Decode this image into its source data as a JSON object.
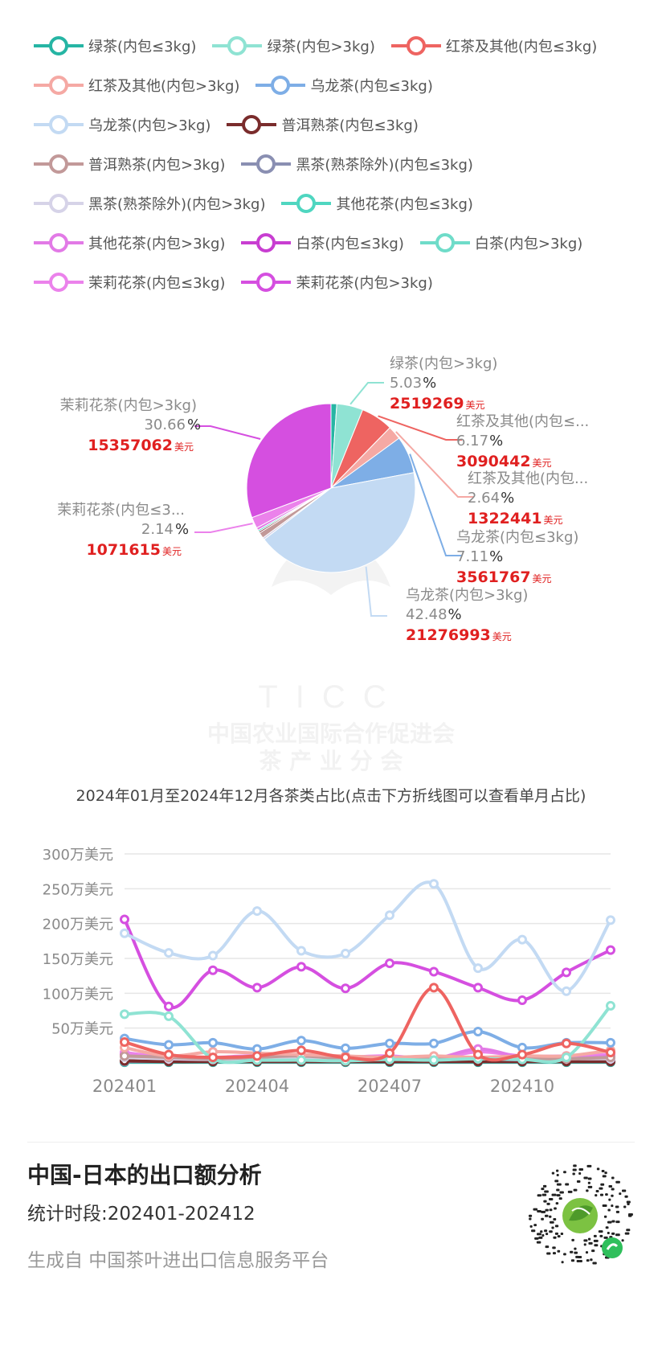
{
  "legend": [
    {
      "label": "绿茶(内包≤3kg)",
      "color": "#26b5a4"
    },
    {
      "label": "绿茶(内包>3kg)",
      "color": "#8fe3d3"
    },
    {
      "label": "红茶及其他(内包≤3kg)",
      "color": "#ee6461"
    },
    {
      "label": "红茶及其他(内包>3kg)",
      "color": "#f5a9a4"
    },
    {
      "label": "乌龙茶(内包≤3kg)",
      "color": "#7eaee6"
    },
    {
      "label": "乌龙茶(内包>3kg)",
      "color": "#c3daf3"
    },
    {
      "label": "普洱熟茶(内包≤3kg)",
      "color": "#7a2c2c"
    },
    {
      "label": "普洱熟茶(内包>3kg)",
      "color": "#c29999"
    },
    {
      "label": "黑茶(熟茶除外)(内包≤3kg)",
      "color": "#8a8fb2"
    },
    {
      "label": "黑茶(熟茶除外)(内包>3kg)",
      "color": "#d6d3e8"
    },
    {
      "label": "其他花茶(内包≤3kg)",
      "color": "#4fd6c0"
    },
    {
      "label": "其他花茶(内包>3kg)",
      "color": "#e27ae6"
    },
    {
      "label": "白茶(内包≤3kg)",
      "color": "#c83ed1"
    },
    {
      "label": "白茶(内包>3kg)",
      "color": "#6fdcc9"
    },
    {
      "label": "茉莉花茶(内包≤3kg)",
      "color": "#eb82eb"
    },
    {
      "label": "茉莉花茶(内包>3kg)",
      "color": "#d54fe0"
    }
  ],
  "legend_rows": [
    [
      0,
      1,
      2
    ],
    [
      3,
      4
    ],
    [
      5,
      6
    ],
    [
      7,
      8
    ],
    [
      9,
      10
    ],
    [
      11,
      12,
      13
    ],
    [
      14,
      15
    ]
  ],
  "chart_data": [
    {
      "type": "pie",
      "title": "",
      "unit": "美元",
      "slices": [
        {
          "name": "绿茶(内包≤3kg)",
          "percent": 1.1,
          "color": "#26b5a4"
        },
        {
          "name": "绿茶(内包>3kg)",
          "percent": 5.03,
          "value": 2519269,
          "color": "#8fe3d3"
        },
        {
          "name": "红茶及其他(内包≤3kg)",
          "percent": 6.17,
          "value": 3090442,
          "color": "#ee6461"
        },
        {
          "name": "红茶及其他(内包>3kg)",
          "percent": 2.64,
          "value": 1322441,
          "color": "#f5a9a4"
        },
        {
          "name": "乌龙茶(内包≤3kg)",
          "percent": 7.11,
          "value": 3561767,
          "color": "#7eaee6"
        },
        {
          "name": "乌龙茶(内包>3kg)",
          "percent": 42.48,
          "value": 21276993,
          "color": "#c3daf3"
        },
        {
          "name": "黑茶(熟茶除外)(内包>3kg)",
          "percent": 0.4,
          "color": "#d6d3e8"
        },
        {
          "name": "普洱熟茶(内包>3kg)",
          "percent": 1.1,
          "color": "#c29999"
        },
        {
          "name": "普洱熟茶(内包≤3kg)",
          "percent": 0.3,
          "color": "#7a2c2c"
        },
        {
          "name": "其他花茶(内包≤3kg)",
          "percent": 0.3,
          "color": "#4fd6c0"
        },
        {
          "name": "其他花茶(内包>3kg)",
          "percent": 0.5,
          "color": "#e27ae6"
        },
        {
          "name": "茉莉花茶(内包≤3kg)",
          "percent": 2.14,
          "value": 1071615,
          "color": "#eb82eb"
        },
        {
          "name": "茉莉花茶(内包>3kg)",
          "percent": 30.66,
          "value": 15357062,
          "color": "#d54fe0"
        }
      ],
      "labels": [
        {
          "slice": 1,
          "name": "绿茶(内包>3kg)",
          "pct": "5.03",
          "amount": "2519269"
        },
        {
          "slice": 2,
          "name": "红茶及其他(内包≤...",
          "pct": "6.17",
          "amount": "3090442"
        },
        {
          "slice": 3,
          "name": "红茶及其他(内包...",
          "pct": "2.64",
          "amount": "1322441"
        },
        {
          "slice": 4,
          "name": "乌龙茶(内包≤3kg)",
          "pct": "7.11",
          "amount": "3561767"
        },
        {
          "slice": 5,
          "name": "乌龙茶(内包>3kg)",
          "pct": "42.48",
          "amount": "21276993"
        },
        {
          "slice": 11,
          "name": "茉莉花茶(内包≤3...",
          "pct": "2.14",
          "amount": "1071615"
        },
        {
          "slice": 12,
          "name": "茉莉花茶(内包>3kg)",
          "pct": "30.66",
          "amount": "15357062"
        }
      ],
      "caption": "2024年01月至2024年12月各茶类占比(点击下方折线图可以查看单月占比)"
    },
    {
      "type": "line",
      "x": [
        "202401",
        "202402",
        "202403",
        "202404",
        "202405",
        "202406",
        "202407",
        "202408",
        "202409",
        "202410",
        "202411",
        "202412"
      ],
      "x_tick_labels": [
        "202401",
        "202404",
        "202407",
        "202410"
      ],
      "y_tick_labels": [
        "50万美元",
        "100万美元",
        "150万美元",
        "200万美元",
        "250万美元",
        "300万美元"
      ],
      "ylim": [
        0,
        300
      ],
      "y_unit": "万美元",
      "series": [
        {
          "name": "乌龙茶(内包>3kg)",
          "color": "#c3daf3",
          "values": [
            186,
            158,
            154,
            218,
            161,
            157,
            212,
            257,
            136,
            177,
            103,
            205
          ]
        },
        {
          "name": "茉莉花茶(内包>3kg)",
          "color": "#d54fe0",
          "values": [
            206,
            81,
            133,
            108,
            138,
            107,
            143,
            131,
            108,
            90,
            130,
            162
          ]
        },
        {
          "name": "红茶及其他(内包≤3kg)",
          "color": "#ee6461",
          "values": [
            30,
            12,
            8,
            10,
            18,
            8,
            14,
            108,
            12,
            12,
            28,
            15
          ]
        },
        {
          "name": "绿茶(内包>3kg)",
          "color": "#8fe3d3",
          "values": [
            70,
            67,
            6,
            4,
            4,
            3,
            5,
            4,
            6,
            5,
            8,
            82
          ]
        },
        {
          "name": "乌龙茶(内包≤3kg)",
          "color": "#7eaee6",
          "values": [
            35,
            26,
            29,
            20,
            32,
            21,
            28,
            28,
            45,
            22,
            29,
            29
          ]
        },
        {
          "name": "红茶及其他(内包>3kg)",
          "color": "#f5a9a4",
          "values": [
            22,
            10,
            16,
            14,
            12,
            10,
            8,
            10,
            8,
            10,
            10,
            18
          ]
        },
        {
          "name": "普洱熟茶(内包>3kg)",
          "color": "#c29999",
          "values": [
            10,
            8,
            6,
            8,
            10,
            6,
            6,
            8,
            6,
            6,
            6,
            8
          ]
        },
        {
          "name": "黑茶(熟茶除外)(内包>3kg)",
          "color": "#d6d3e8",
          "values": [
            8,
            6,
            5,
            6,
            8,
            6,
            6,
            6,
            6,
            6,
            6,
            6
          ]
        },
        {
          "name": "其他花茶(内包>3kg)",
          "color": "#e27ae6",
          "values": [
            10,
            8,
            6,
            8,
            6,
            6,
            8,
            6,
            20,
            8,
            6,
            10
          ]
        },
        {
          "name": "茉莉花茶(内包≤3kg)",
          "color": "#eb82eb",
          "values": [
            15,
            8,
            8,
            10,
            6,
            8,
            10,
            6,
            16,
            10,
            10,
            12
          ]
        },
        {
          "name": "白茶(内包≤3kg)",
          "color": "#c83ed1",
          "values": [
            12,
            6,
            6,
            5,
            6,
            5,
            6,
            5,
            6,
            5,
            10,
            6
          ]
        },
        {
          "name": "普洱熟茶(内包≤3kg)",
          "color": "#7a2c2c",
          "values": [
            3,
            2,
            2,
            2,
            2,
            2,
            2,
            2,
            2,
            2,
            2,
            2
          ]
        },
        {
          "name": "黑茶(熟茶除外)(内包≤3kg)",
          "color": "#8a8fb2",
          "values": [
            2,
            2,
            2,
            2,
            2,
            2,
            2,
            2,
            2,
            2,
            2,
            2
          ]
        },
        {
          "name": "其他花茶(内包≤3kg)",
          "color": "#4fd6c0",
          "values": [
            2,
            2,
            2,
            2,
            2,
            2,
            2,
            2,
            2,
            2,
            2,
            2
          ]
        },
        {
          "name": "白茶(内包>3kg)",
          "color": "#6fdcc9",
          "values": [
            2,
            2,
            2,
            2,
            2,
            2,
            2,
            2,
            2,
            2,
            2,
            2
          ]
        },
        {
          "name": "绿茶(内包≤3kg)",
          "color": "#26b5a4",
          "values": [
            1,
            1,
            1,
            1,
            1,
            1,
            1,
            1,
            1,
            1,
            1,
            1
          ]
        }
      ]
    }
  ],
  "watermark": {
    "line1": "TICC",
    "line2": "中国农业国际合作促进会",
    "line3": "茶 产 业 分 会"
  },
  "footer": {
    "title": "中国-日本的出口额分析",
    "period": "统计时段:202401-202412",
    "source": "生成自 中国茶叶进出口信息服务平台"
  },
  "colors": {
    "label_value": "#e02020",
    "label_text": "#8a8a8a",
    "grid": "#e6e6e6",
    "axis_text": "#8a8a8a"
  }
}
